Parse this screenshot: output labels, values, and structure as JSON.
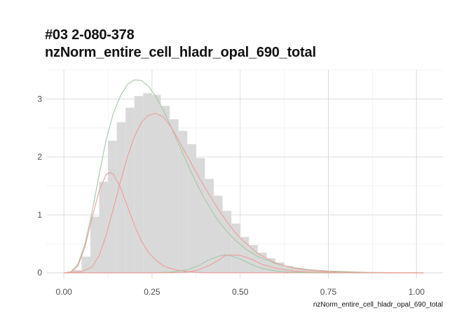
{
  "chart_data": {
    "type": "bar",
    "title_lines": [
      "#03 2-080-378",
      "nzNorm_entire_cell_hladr_opal_690_total"
    ],
    "xlabel": "nzNorm_entire_cell_hladr_opal_690_total",
    "ylabel": "",
    "xlim": [
      -0.05,
      1.075
    ],
    "ylim": [
      -0.1,
      3.5
    ],
    "x_ticks": [
      0.0,
      0.25,
      0.5,
      0.75,
      1.0
    ],
    "x_tick_labels": [
      "0.00",
      "0.25",
      "0.50",
      "0.75",
      "1.00"
    ],
    "y_ticks": [
      0,
      1,
      2,
      3
    ],
    "y_tick_labels": [
      "0",
      "1",
      "2",
      "3"
    ],
    "grid": true,
    "histogram": {
      "bin_width": 0.025,
      "bin_starts": [
        0.025,
        0.05,
        0.075,
        0.1,
        0.125,
        0.15,
        0.175,
        0.2,
        0.225,
        0.25,
        0.275,
        0.3,
        0.325,
        0.35,
        0.375,
        0.4,
        0.425,
        0.45,
        0.475,
        0.5,
        0.525,
        0.55,
        0.575,
        0.6,
        0.625,
        0.65,
        0.675,
        0.7,
        0.725,
        0.75,
        0.775,
        0.8
      ],
      "values": [
        0.05,
        0.28,
        0.97,
        1.57,
        2.28,
        2.6,
        2.85,
        3.05,
        3.1,
        3.07,
        2.88,
        2.65,
        2.45,
        2.22,
        1.98,
        1.62,
        1.33,
        1.07,
        0.85,
        0.62,
        0.48,
        0.35,
        0.25,
        0.18,
        0.12,
        0.08,
        0.06,
        0.04,
        0.03,
        0.02,
        0.01,
        0.01
      ],
      "color": "#d9d9d9"
    },
    "series": [
      {
        "type": "line",
        "color": "#a5c8a3",
        "x": [
          0.0,
          0.02,
          0.04,
          0.06,
          0.08,
          0.1,
          0.12,
          0.14,
          0.16,
          0.18,
          0.2,
          0.22,
          0.24,
          0.26,
          0.28,
          0.3,
          0.32,
          0.34,
          0.36,
          0.38,
          0.4,
          0.42,
          0.44,
          0.46,
          0.48,
          0.5,
          0.52,
          0.55,
          0.6,
          0.65,
          0.7,
          0.75,
          0.8,
          0.85,
          0.9,
          1.0,
          1.02
        ],
        "y": [
          0.0,
          0.02,
          0.15,
          0.5,
          1.05,
          1.7,
          2.3,
          2.75,
          3.05,
          3.25,
          3.33,
          3.32,
          3.22,
          3.05,
          2.83,
          2.57,
          2.3,
          2.02,
          1.75,
          1.5,
          1.27,
          1.06,
          0.88,
          0.73,
          0.6,
          0.49,
          0.39,
          0.28,
          0.16,
          0.09,
          0.05,
          0.03,
          0.02,
          0.01,
          0.0,
          0.0,
          0.0
        ]
      },
      {
        "type": "line",
        "color": "#ef9d9a",
        "x": [
          0.0,
          0.02,
          0.04,
          0.06,
          0.08,
          0.1,
          0.12,
          0.13,
          0.14,
          0.16,
          0.18,
          0.2,
          0.22,
          0.24,
          0.26,
          0.28,
          0.3,
          0.32,
          0.35,
          0.4,
          0.45,
          0.5,
          0.55,
          0.6,
          0.7,
          0.8,
          1.02
        ],
        "y": [
          0.0,
          0.01,
          0.12,
          0.45,
          0.95,
          1.42,
          1.7,
          1.73,
          1.7,
          1.48,
          1.15,
          0.82,
          0.55,
          0.35,
          0.22,
          0.13,
          0.08,
          0.05,
          0.02,
          0.0,
          0.0,
          0.0,
          0.0,
          0.0,
          0.0,
          0.0,
          0.0
        ]
      },
      {
        "type": "line",
        "color": "#ef9d9a",
        "x": [
          0.0,
          0.05,
          0.08,
          0.1,
          0.12,
          0.14,
          0.16,
          0.18,
          0.2,
          0.22,
          0.24,
          0.26,
          0.28,
          0.3,
          0.32,
          0.34,
          0.36,
          0.38,
          0.4,
          0.42,
          0.44,
          0.46,
          0.48,
          0.5,
          0.55,
          0.6,
          0.65,
          0.7,
          0.75,
          0.8,
          0.9,
          1.02
        ],
        "y": [
          0.0,
          0.02,
          0.1,
          0.3,
          0.65,
          1.1,
          1.57,
          2.0,
          2.35,
          2.6,
          2.72,
          2.75,
          2.7,
          2.55,
          2.35,
          2.12,
          1.9,
          1.68,
          1.47,
          1.27,
          1.08,
          0.9,
          0.74,
          0.6,
          0.33,
          0.17,
          0.08,
          0.04,
          0.02,
          0.01,
          0.0,
          0.0
        ]
      },
      {
        "type": "line",
        "color": "#a5c8a3",
        "x": [
          0.0,
          0.25,
          0.3,
          0.35,
          0.38,
          0.41,
          0.44,
          0.455,
          0.47,
          0.5,
          0.53,
          0.56,
          0.6,
          0.65,
          0.7,
          1.02
        ],
        "y": [
          0.0,
          0.0,
          0.01,
          0.05,
          0.12,
          0.22,
          0.29,
          0.31,
          0.3,
          0.24,
          0.15,
          0.08,
          0.03,
          0.01,
          0.0,
          0.0
        ]
      },
      {
        "type": "line",
        "color": "#ef9d9a",
        "x": [
          0.0,
          0.3,
          0.35,
          0.38,
          0.41,
          0.44,
          0.455,
          0.47,
          0.5,
          0.53,
          0.56,
          0.6,
          0.65,
          0.7,
          1.02
        ],
        "y": [
          0.0,
          0.0,
          0.01,
          0.05,
          0.12,
          0.22,
          0.29,
          0.31,
          0.3,
          0.24,
          0.15,
          0.08,
          0.03,
          0.01,
          0.0
        ]
      }
    ]
  }
}
